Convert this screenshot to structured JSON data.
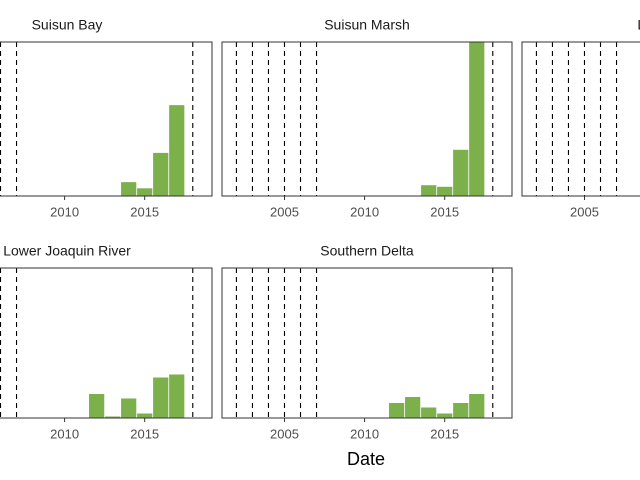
{
  "chart_data": {
    "type": "bar",
    "xlabel": "Date",
    "xlim": [
      2001.1,
      2019.2
    ],
    "ylim": [
      0,
      100
    ],
    "xticks": [
      2005,
      2010,
      2015
    ],
    "vlines": [
      2002,
      2003,
      2004,
      2005,
      2006,
      2007,
      2018
    ],
    "color": "#7cb04b",
    "facets": [
      {
        "title": "Suisun Bay",
        "x": [
          2014,
          2015,
          2016,
          2017
        ],
        "values": [
          9,
          5,
          28,
          59
        ]
      },
      {
        "title": "Suisun Marsh",
        "x": [
          2014,
          2015,
          2016,
          2017
        ],
        "values": [
          7,
          6,
          30,
          100
        ]
      },
      {
        "title": "Lower Sa",
        "x": [],
        "values": []
      },
      {
        "title": "Lower Joaquin River",
        "x": [
          2012,
          2013,
          2014,
          2015,
          2016,
          2017
        ],
        "values": [
          16,
          1,
          13,
          3,
          27,
          29
        ]
      },
      {
        "title": "Southern Delta",
        "x": [
          2012,
          2013,
          2014,
          2015,
          2016,
          2017
        ],
        "values": [
          10,
          14,
          7,
          3,
          10,
          16
        ]
      }
    ]
  }
}
